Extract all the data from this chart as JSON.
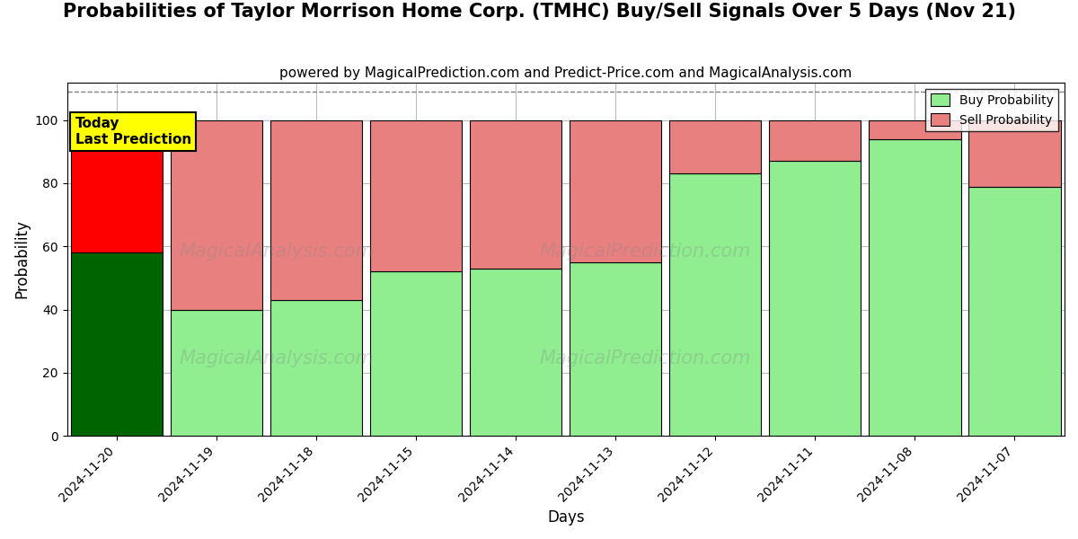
{
  "title": "Probabilities of Taylor Morrison Home Corp. (TMHC) Buy/Sell Signals Over 5 Days (Nov 21)",
  "subtitle": "powered by MagicalPrediction.com and Predict-Price.com and MagicalAnalysis.com",
  "xlabel": "Days",
  "ylabel": "Probability",
  "categories": [
    "2024-11-20",
    "2024-11-19",
    "2024-11-18",
    "2024-11-15",
    "2024-11-14",
    "2024-11-13",
    "2024-11-12",
    "2024-11-11",
    "2024-11-08",
    "2024-11-07"
  ],
  "buy_values": [
    58,
    40,
    43,
    52,
    53,
    55,
    83,
    87,
    94,
    79
  ],
  "sell_values": [
    42,
    60,
    57,
    48,
    47,
    45,
    17,
    13,
    6,
    21
  ],
  "today_buy_color": "#006400",
  "today_sell_color": "#ff0000",
  "normal_buy_color": "#90ee90",
  "normal_sell_color": "#e88080",
  "today_label_bg": "#ffff00",
  "today_label_text": "Today\nLast Prediction",
  "ylim": [
    0,
    112
  ],
  "yticks": [
    0,
    20,
    40,
    60,
    80,
    100
  ],
  "dashed_line_y": 109,
  "legend_buy_label": "Buy Probability",
  "legend_sell_label": "Sell Probability",
  "title_fontsize": 15,
  "subtitle_fontsize": 11,
  "axis_label_fontsize": 12,
  "background_color": "#ffffff",
  "grid_color": "#bbbbbb",
  "bar_width": 0.92
}
